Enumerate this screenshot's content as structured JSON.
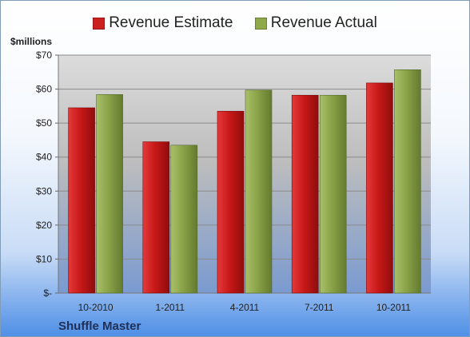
{
  "chart_data": {
    "type": "bar",
    "categories": [
      "10-2010",
      "1-2011",
      "4-2011",
      "7-2011",
      "10-2011"
    ],
    "series": [
      {
        "name": "Revenue Estimate",
        "values": [
          54.5,
          44.5,
          53.5,
          58.2,
          61.8
        ],
        "color": "#cc1f1f"
      },
      {
        "name": "Revenue Actual",
        "values": [
          58.4,
          43.5,
          59.7,
          58.2,
          65.7
        ],
        "color": "#8fa84a"
      }
    ],
    "ylabel": "$millions",
    "ylim": [
      0,
      70
    ],
    "yticks": [
      {
        "value": 0,
        "label": "$-"
      },
      {
        "value": 10,
        "label": "$10"
      },
      {
        "value": 20,
        "label": "$20"
      },
      {
        "value": 30,
        "label": "$30"
      },
      {
        "value": 40,
        "label": "$40"
      },
      {
        "value": 50,
        "label": "$50"
      },
      {
        "value": 60,
        "label": "$60"
      },
      {
        "value": 70,
        "label": "$70"
      }
    ],
    "grid": true,
    "legend_position": "top",
    "footer": "Shuffle Master"
  }
}
